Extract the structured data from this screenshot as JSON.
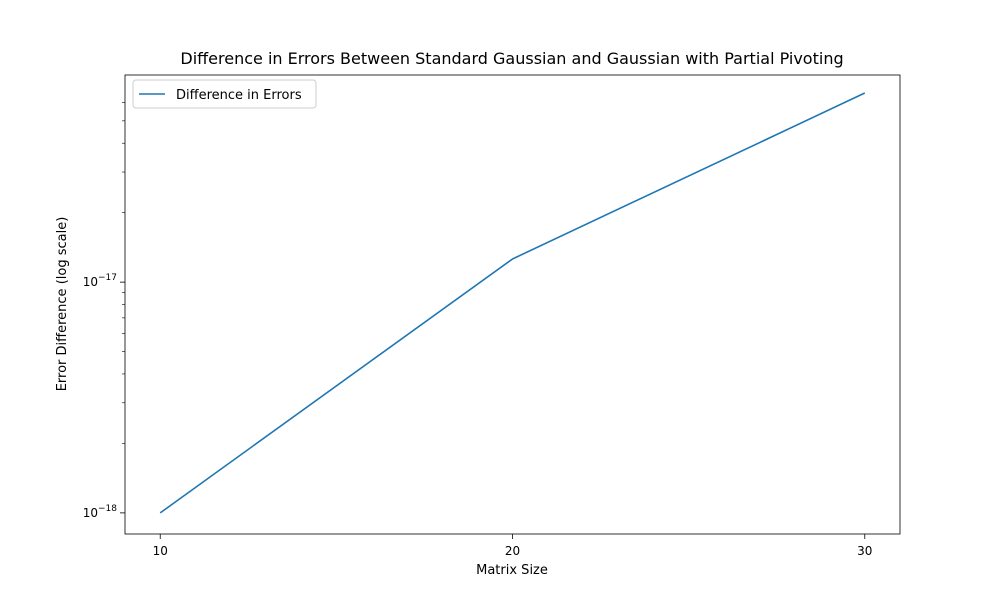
{
  "chart_data": {
    "type": "line",
    "title": "Difference in Errors Between Standard Gaussian and Gaussian with Partial Pivoting",
    "xlabel": "Matrix Size",
    "ylabel": "Error Difference (log scale)",
    "y_scale": "log",
    "grid": false,
    "legend_position": "top-left",
    "x_ticks": [
      {
        "value": 10,
        "label": "10"
      },
      {
        "value": 20,
        "label": "20"
      },
      {
        "value": 30,
        "label": "30"
      }
    ],
    "y_major_ticks": [
      {
        "value": 1e-18,
        "base": "10",
        "exponent": "−18"
      },
      {
        "value": 1e-17,
        "base": "10",
        "exponent": "−17"
      }
    ],
    "y_minor_ticks": [
      2e-18,
      3e-18,
      4e-18,
      5e-18,
      6e-18,
      7e-18,
      8e-18,
      9e-18,
      2e-17,
      3e-17,
      4e-17,
      5e-17,
      6e-17
    ],
    "xlim": [
      9,
      31
    ],
    "ylim": [
      8.1e-19,
      7.9e-17
    ],
    "series": [
      {
        "name": "Difference in Errors",
        "color": "#1f77b4",
        "x": [
          10,
          20,
          30
        ],
        "y": [
          1e-18,
          1.26e-17,
          6.6e-17
        ]
      }
    ]
  }
}
